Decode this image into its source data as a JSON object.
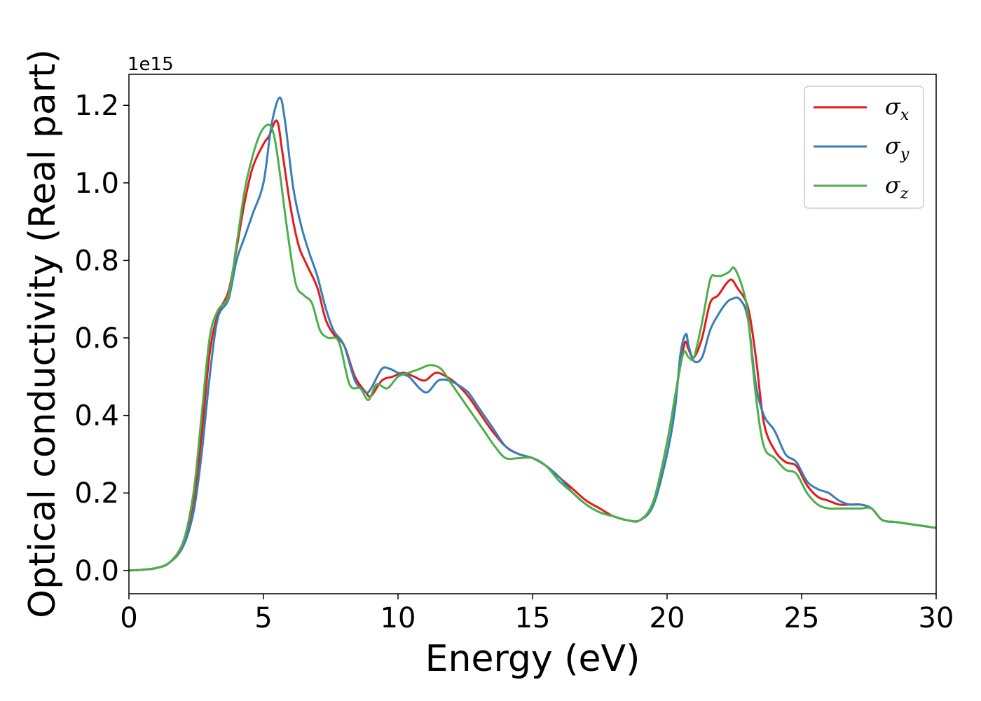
{
  "chart_data": {
    "type": "line",
    "xlabel": "Energy (eV)",
    "ylabel": "Optical conductivity (Real part)",
    "offset_text": "1e15",
    "xlim": [
      0,
      30
    ],
    "ylim": [
      -0.06,
      1.28
    ],
    "y_scale_factor": "1e15",
    "xticks": [
      0,
      5,
      10,
      15,
      20,
      25,
      30
    ],
    "xtick_labels": [
      "0",
      "5",
      "10",
      "15",
      "20",
      "25",
      "30"
    ],
    "yticks": [
      0.0,
      0.2,
      0.4,
      0.6,
      0.8,
      1.0,
      1.2
    ],
    "ytick_labels": [
      "0.0",
      "0.2",
      "0.4",
      "0.6",
      "0.8",
      "1.0",
      "1.2"
    ],
    "grid": false,
    "legend_position": "top-right",
    "series": [
      {
        "name": "σ",
        "subscript": "x",
        "color": "#e41a1c",
        "x": [
          0,
          0.5,
          1.0,
          1.5,
          2.0,
          2.4,
          2.7,
          3.0,
          3.3,
          3.7,
          4.0,
          4.3,
          4.6,
          5.0,
          5.2,
          5.5,
          5.7,
          6.0,
          6.3,
          6.6,
          7.0,
          7.3,
          7.6,
          8.0,
          8.4,
          8.8,
          9.0,
          9.4,
          9.8,
          10.2,
          10.6,
          11.0,
          11.4,
          11.8,
          12.2,
          12.6,
          13.0,
          13.5,
          14.0,
          14.5,
          15.0,
          15.5,
          16.0,
          16.5,
          17.0,
          17.5,
          18.0,
          18.5,
          19.0,
          19.5,
          20.0,
          20.3,
          20.6,
          20.7,
          20.8,
          21.0,
          21.3,
          21.6,
          21.9,
          22.2,
          22.4,
          22.6,
          23.0,
          23.3,
          23.6,
          24.0,
          24.4,
          24.8,
          25.2,
          25.6,
          26.0,
          26.4,
          26.8,
          27.2,
          27.6,
          28.0,
          28.5,
          29.0,
          29.5,
          30.0
        ],
        "values": [
          0.0,
          0.002,
          0.006,
          0.02,
          0.07,
          0.18,
          0.35,
          0.56,
          0.66,
          0.72,
          0.83,
          0.95,
          1.04,
          1.1,
          1.12,
          1.16,
          1.08,
          0.94,
          0.84,
          0.79,
          0.73,
          0.65,
          0.61,
          0.58,
          0.5,
          0.46,
          0.45,
          0.49,
          0.5,
          0.51,
          0.5,
          0.49,
          0.51,
          0.5,
          0.48,
          0.45,
          0.41,
          0.36,
          0.32,
          0.3,
          0.29,
          0.27,
          0.24,
          0.21,
          0.18,
          0.16,
          0.14,
          0.13,
          0.13,
          0.18,
          0.33,
          0.45,
          0.57,
          0.59,
          0.57,
          0.55,
          0.6,
          0.69,
          0.71,
          0.74,
          0.75,
          0.73,
          0.68,
          0.55,
          0.38,
          0.31,
          0.28,
          0.27,
          0.22,
          0.19,
          0.18,
          0.17,
          0.17,
          0.17,
          0.16,
          0.13,
          0.125,
          0.12,
          0.115,
          0.11
        ]
      },
      {
        "name": "σ",
        "subscript": "y",
        "color": "#377eb8",
        "x": [
          0,
          0.5,
          1.0,
          1.5,
          2.0,
          2.4,
          2.7,
          3.0,
          3.3,
          3.7,
          4.0,
          4.3,
          4.6,
          5.0,
          5.3,
          5.6,
          5.8,
          6.1,
          6.4,
          6.7,
          7.0,
          7.3,
          7.6,
          8.0,
          8.4,
          8.8,
          9.0,
          9.4,
          9.7,
          10.0,
          10.4,
          10.8,
          11.1,
          11.5,
          11.9,
          12.2,
          12.6,
          13.0,
          13.5,
          14.0,
          14.5,
          15.0,
          15.5,
          16.0,
          16.5,
          17.0,
          17.5,
          18.0,
          18.5,
          19.0,
          19.5,
          20.0,
          20.3,
          20.5,
          20.7,
          20.8,
          21.0,
          21.3,
          21.6,
          21.9,
          22.2,
          22.4,
          22.7,
          23.0,
          23.3,
          23.6,
          24.0,
          24.4,
          24.8,
          25.2,
          25.6,
          26.0,
          26.4,
          26.8,
          27.2,
          27.6,
          28.0,
          28.5,
          29.0,
          29.5,
          30.0
        ],
        "values": [
          0.0,
          0.002,
          0.006,
          0.02,
          0.06,
          0.15,
          0.3,
          0.5,
          0.65,
          0.7,
          0.8,
          0.86,
          0.92,
          1.0,
          1.15,
          1.22,
          1.16,
          0.99,
          0.89,
          0.82,
          0.76,
          0.68,
          0.62,
          0.58,
          0.49,
          0.46,
          0.47,
          0.52,
          0.52,
          0.51,
          0.5,
          0.47,
          0.46,
          0.49,
          0.49,
          0.48,
          0.46,
          0.42,
          0.37,
          0.32,
          0.3,
          0.29,
          0.27,
          0.24,
          0.2,
          0.17,
          0.15,
          0.14,
          0.13,
          0.13,
          0.17,
          0.3,
          0.42,
          0.56,
          0.61,
          0.58,
          0.54,
          0.55,
          0.62,
          0.66,
          0.69,
          0.7,
          0.7,
          0.65,
          0.48,
          0.4,
          0.36,
          0.3,
          0.28,
          0.23,
          0.21,
          0.2,
          0.18,
          0.17,
          0.17,
          0.16,
          0.13,
          0.125,
          0.12,
          0.115,
          0.11
        ]
      },
      {
        "name": "σ",
        "subscript": "z",
        "color": "#4daf4a",
        "x": [
          0,
          0.5,
          1.0,
          1.5,
          2.0,
          2.4,
          2.7,
          3.0,
          3.3,
          3.7,
          4.0,
          4.3,
          4.6,
          4.9,
          5.2,
          5.4,
          5.6,
          5.9,
          6.2,
          6.5,
          6.8,
          7.1,
          7.4,
          7.8,
          8.2,
          8.6,
          8.9,
          9.2,
          9.6,
          10.0,
          10.4,
          10.8,
          11.2,
          11.6,
          12.0,
          12.4,
          12.8,
          13.2,
          13.6,
          14.0,
          14.5,
          15.0,
          15.5,
          16.0,
          16.5,
          17.0,
          17.5,
          18.0,
          18.5,
          19.0,
          19.5,
          20.0,
          20.3,
          20.6,
          20.8,
          21.0,
          21.3,
          21.6,
          21.8,
          22.0,
          22.3,
          22.5,
          22.8,
          23.0,
          23.3,
          23.6,
          24.0,
          24.4,
          24.8,
          25.2,
          25.6,
          26.0,
          26.4,
          26.8,
          27.2,
          27.6,
          28.0,
          28.5,
          29.0,
          29.5,
          30.0
        ],
        "values": [
          0.0,
          0.002,
          0.006,
          0.02,
          0.07,
          0.2,
          0.4,
          0.6,
          0.67,
          0.71,
          0.84,
          0.98,
          1.07,
          1.13,
          1.15,
          1.12,
          1.03,
          0.87,
          0.74,
          0.71,
          0.69,
          0.62,
          0.6,
          0.59,
          0.48,
          0.47,
          0.44,
          0.48,
          0.47,
          0.5,
          0.51,
          0.52,
          0.53,
          0.52,
          0.48,
          0.44,
          0.4,
          0.36,
          0.32,
          0.29,
          0.29,
          0.29,
          0.27,
          0.23,
          0.2,
          0.17,
          0.15,
          0.14,
          0.13,
          0.13,
          0.18,
          0.33,
          0.45,
          0.56,
          0.55,
          0.55,
          0.64,
          0.75,
          0.76,
          0.76,
          0.77,
          0.78,
          0.73,
          0.66,
          0.45,
          0.32,
          0.29,
          0.26,
          0.25,
          0.2,
          0.17,
          0.16,
          0.16,
          0.16,
          0.16,
          0.16,
          0.13,
          0.125,
          0.12,
          0.115,
          0.11
        ]
      }
    ]
  }
}
